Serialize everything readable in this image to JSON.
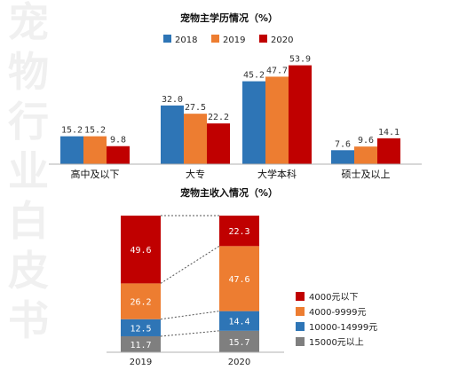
{
  "watermark": [
    "宠",
    "物",
    "行",
    "业",
    "白",
    "皮",
    "书"
  ],
  "chart_data": [
    {
      "type": "bar",
      "title": "宠物主学历情况（%）",
      "categories": [
        "高中及以下",
        "大专",
        "大学本科",
        "硕士及以上"
      ],
      "series": [
        {
          "name": "2018",
          "values": [
            15.2,
            32.0,
            45.2,
            7.6
          ],
          "color": "#2e75b6"
        },
        {
          "name": "2019",
          "values": [
            15.2,
            27.5,
            47.7,
            9.6
          ],
          "color": "#ed7d31"
        },
        {
          "name": "2020",
          "values": [
            9.8,
            22.2,
            53.9,
            14.1
          ],
          "color": "#c00000"
        }
      ],
      "ylim": [
        0,
        60
      ],
      "legend": "top",
      "grid": false
    },
    {
      "type": "bar",
      "stacked": true,
      "title": "宠物主收入情况（%）",
      "categories": [
        "2019",
        "2020"
      ],
      "series": [
        {
          "name": "15000元以上",
          "values": [
            11.7,
            15.7
          ],
          "color": "#7f7f7f"
        },
        {
          "name": "10000-14999元",
          "values": [
            12.5,
            14.4
          ],
          "color": "#2e75b6"
        },
        {
          "name": "4000-9999元",
          "values": [
            26.2,
            47.6
          ],
          "color": "#ed7d31"
        },
        {
          "name": "4000元以下",
          "values": [
            49.6,
            22.3
          ],
          "color": "#c00000"
        }
      ],
      "legend_order": [
        "4000元以下",
        "4000-9999元",
        "10000-14999元",
        "15000元以上"
      ],
      "ylim": [
        0,
        100
      ],
      "legend": "right",
      "grid": false
    }
  ]
}
